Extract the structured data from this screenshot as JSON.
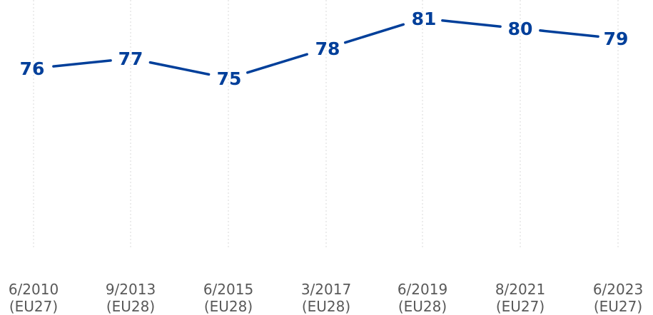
{
  "chart_data": {
    "type": "line",
    "categories": [
      {
        "line1": "6/2010",
        "line2": "(EU27)"
      },
      {
        "line1": "9/2013",
        "line2": "(EU28)"
      },
      {
        "line1": "6/2015",
        "line2": "(EU28)"
      },
      {
        "line1": "3/2017",
        "line2": "(EU28)"
      },
      {
        "line1": "6/2019",
        "line2": "(EU28)"
      },
      {
        "line1": "8/2021",
        "line2": "(EU27)"
      },
      {
        "line1": "6/2023",
        "line2": "(EU27)"
      }
    ],
    "series": [
      {
        "values": [
          76,
          77,
          75,
          78,
          81,
          80,
          79
        ],
        "color": "#003f9a"
      }
    ],
    "data_labels": [
      "76",
      "77",
      "75",
      "78",
      "81",
      "80",
      "79"
    ],
    "ylim": [
      0,
      83
    ],
    "grid": "vertical dashed",
    "legend": "none"
  }
}
